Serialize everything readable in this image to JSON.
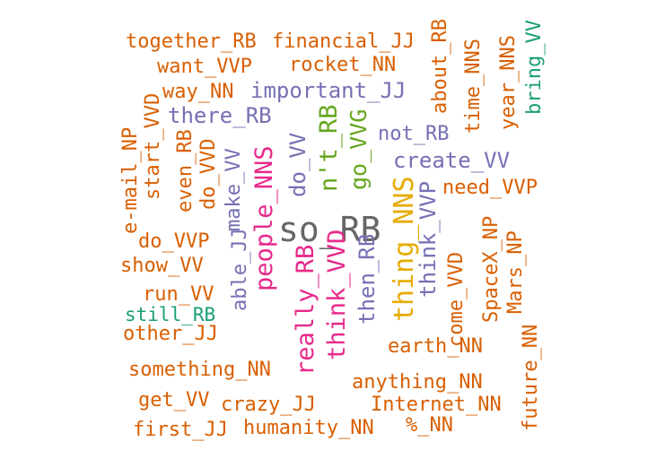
{
  "word_cloud": {
    "palette": {
      "orange": "#d95f02",
      "purple": "#7570b3",
      "pink": "#e7298a",
      "green": "#66a61e",
      "gold": "#e6ab02",
      "teal": "#1b9e77",
      "gray": "#666666"
    },
    "words": [
      {
        "text": "so_RB",
        "color": "gray"
      },
      {
        "text": "thing_NNS",
        "color": "gold"
      },
      {
        "text": "people_NNS",
        "color": "pink"
      },
      {
        "text": "really_RB",
        "color": "pink"
      },
      {
        "text": "think_VVD",
        "color": "pink"
      },
      {
        "text": "n't_RB",
        "color": "green"
      },
      {
        "text": "go_VVG",
        "color": "green"
      },
      {
        "text": "do_VV",
        "color": "purple"
      },
      {
        "text": "important_JJ",
        "color": "purple"
      },
      {
        "text": "there_RB",
        "color": "purple"
      },
      {
        "text": "create_VV",
        "color": "purple"
      },
      {
        "text": "not_RB",
        "color": "purple"
      },
      {
        "text": "then_RB",
        "color": "purple"
      },
      {
        "text": "think_VVP",
        "color": "purple"
      },
      {
        "text": "able_JJ",
        "color": "purple"
      },
      {
        "text": "make_VV",
        "color": "purple"
      },
      {
        "text": "do_VVD",
        "color": "orange"
      },
      {
        "text": "together_RB",
        "color": "orange"
      },
      {
        "text": "financial_JJ",
        "color": "orange"
      },
      {
        "text": "want_VVP",
        "color": "orange"
      },
      {
        "text": "rocket_NN",
        "color": "orange"
      },
      {
        "text": "way_NN",
        "color": "orange"
      },
      {
        "text": "about_RB",
        "color": "orange"
      },
      {
        "text": "time_NNS",
        "color": "orange"
      },
      {
        "text": "year_NNS",
        "color": "orange"
      },
      {
        "text": "bring_VV",
        "color": "teal"
      },
      {
        "text": "need_VVP",
        "color": "orange"
      },
      {
        "text": "e-mail_NP",
        "color": "orange"
      },
      {
        "text": "start_VVD",
        "color": "orange"
      },
      {
        "text": "even_RB",
        "color": "orange"
      },
      {
        "text": "do_VVP",
        "color": "orange"
      },
      {
        "text": "show_VV",
        "color": "orange"
      },
      {
        "text": "run_VV",
        "color": "orange"
      },
      {
        "text": "still_RB",
        "color": "teal"
      },
      {
        "text": "other_JJ",
        "color": "orange"
      },
      {
        "text": "come_VVD",
        "color": "orange"
      },
      {
        "text": "SpaceX_NP",
        "color": "orange"
      },
      {
        "text": "Mars_NP",
        "color": "orange"
      },
      {
        "text": "earth_NN",
        "color": "orange"
      },
      {
        "text": "something_NN",
        "color": "orange"
      },
      {
        "text": "anything_NN",
        "color": "orange"
      },
      {
        "text": "future_NN",
        "color": "orange"
      },
      {
        "text": "get_VV",
        "color": "orange"
      },
      {
        "text": "crazy_JJ",
        "color": "orange"
      },
      {
        "text": "Internet_NN",
        "color": "orange"
      },
      {
        "text": "first_JJ",
        "color": "orange"
      },
      {
        "text": "humanity_NN",
        "color": "orange"
      },
      {
        "text": "%_NN",
        "color": "orange"
      }
    ]
  }
}
